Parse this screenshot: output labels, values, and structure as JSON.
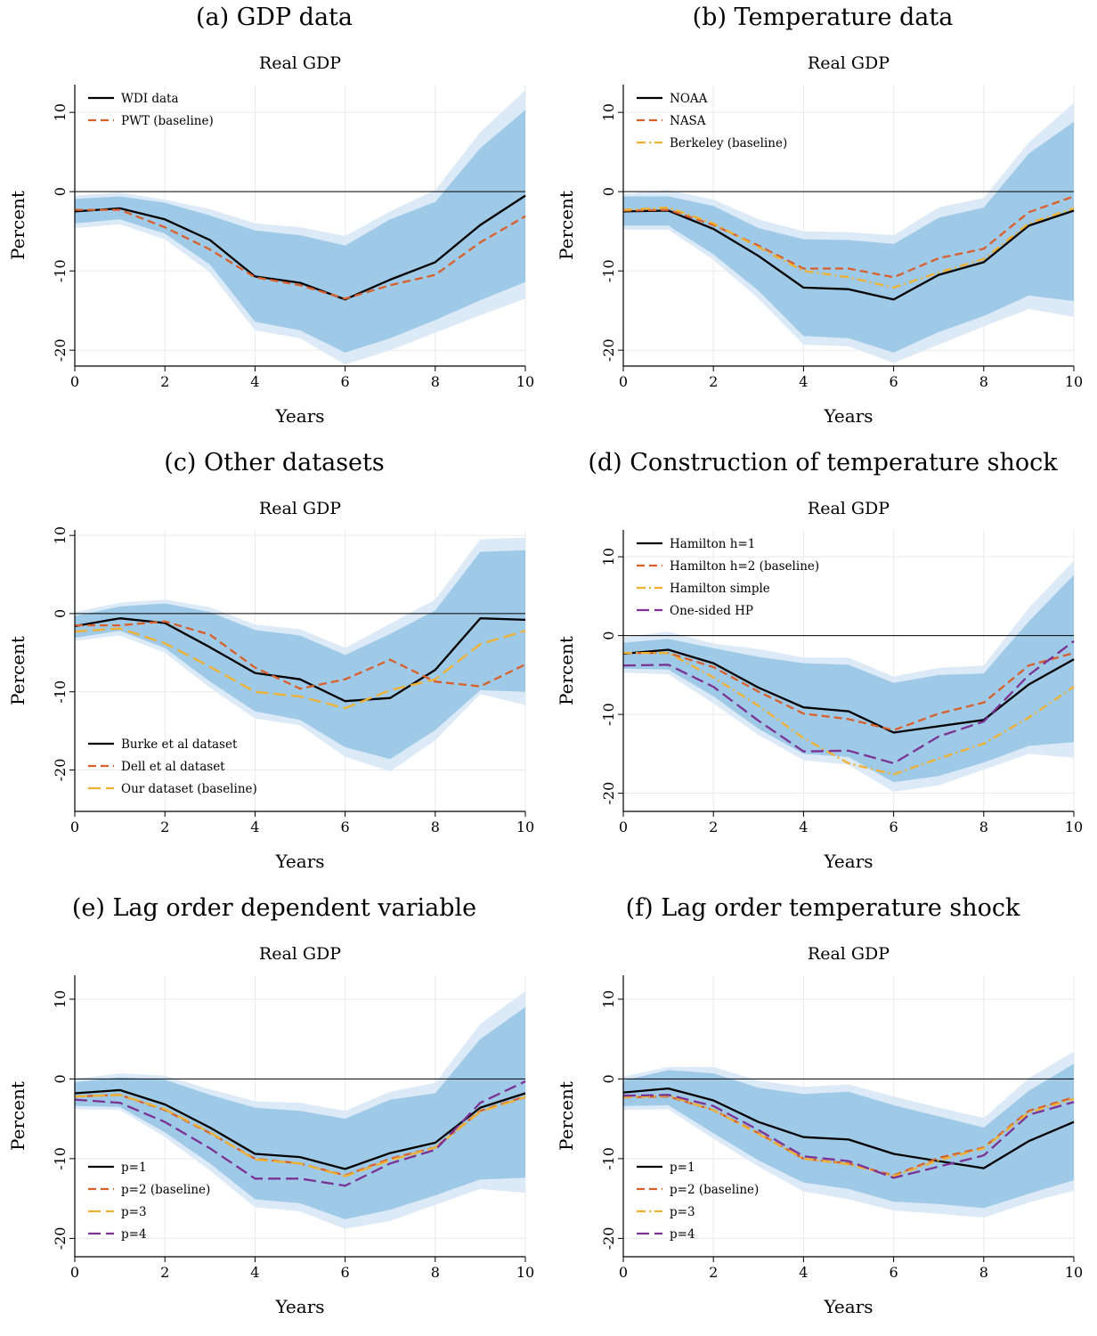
{
  "panels": [
    {
      "heading": "(a) GDP data"
    },
    {
      "heading": "(b) Temperature data"
    },
    {
      "heading": "(c) Other datasets"
    },
    {
      "heading": "(d) Construction of temperature shock"
    },
    {
      "heading": "(e) Lag order dependent variable"
    },
    {
      "heading": "(f) Lag order temperature shock"
    }
  ],
  "colors": {
    "band_outer": "#dce9f6",
    "band_inner": "#9ecae8",
    "zero_line": "#000000",
    "grid": "#eaeaea",
    "black": "#000000",
    "orange": "#d95f2b",
    "yellow": "#f0b030",
    "purple": "#7b3294"
  },
  "chart_data": [
    {
      "type": "line",
      "title": "Real GDP",
      "xlabel": "Years",
      "ylabel": "Percent",
      "x": [
        0,
        1,
        2,
        3,
        4,
        5,
        6,
        7,
        8,
        9,
        10
      ],
      "xticks": [
        0,
        2,
        4,
        6,
        8,
        10
      ],
      "yticks": [
        10,
        0,
        -10,
        -20
      ],
      "ylim": [
        -22,
        13.5
      ],
      "xlim": [
        0,
        10
      ],
      "grid": true,
      "legend_position": "top-left",
      "band_outer_upper": [
        -0.5,
        -0.1,
        -1.0,
        -2.2,
        -4.0,
        -4.5,
        -5.6,
        -2.5,
        0.2,
        7.5,
        12.8
      ],
      "band_outer_lower": [
        -4.6,
        -4.1,
        -6.0,
        -10.2,
        -17.5,
        -18.5,
        -21.8,
        -20.0,
        -17.8,
        -15.6,
        -13.5
      ],
      "band_inner_upper": [
        -0.9,
        -0.6,
        -1.4,
        -3.0,
        -4.9,
        -5.5,
        -6.8,
        -3.5,
        -1.3,
        5.5,
        10.3
      ],
      "band_inner_lower": [
        -4.0,
        -3.5,
        -5.3,
        -9.2,
        -16.4,
        -17.5,
        -20.3,
        -18.5,
        -16.2,
        -13.7,
        -11.4
      ],
      "series": [
        {
          "name": "WDI data",
          "color": "black",
          "dash": "solid",
          "values": [
            -2.5,
            -2.1,
            -3.5,
            -6.1,
            -10.7,
            -11.5,
            -13.6,
            -11.1,
            -8.9,
            -4.2,
            -0.5
          ]
        },
        {
          "name": "PWT (baseline)",
          "color": "orange",
          "dash": "dashed",
          "values": [
            -2.3,
            -2.3,
            -4.5,
            -7.3,
            -10.8,
            -11.8,
            -13.5,
            -11.8,
            -10.5,
            -6.4,
            -3.1
          ]
        }
      ]
    },
    {
      "type": "line",
      "title": "Real GDP",
      "xlabel": "Years",
      "ylabel": "Percent",
      "x": [
        0,
        1,
        2,
        3,
        4,
        5,
        6,
        7,
        8,
        9,
        10
      ],
      "xticks": [
        0,
        2,
        4,
        6,
        8,
        10
      ],
      "yticks": [
        10,
        0,
        -10,
        -20
      ],
      "ylim": [
        -22,
        13.5
      ],
      "xlim": [
        0,
        10
      ],
      "grid": true,
      "legend_position": "top-left",
      "band_outer_upper": [
        -0.3,
        0.2,
        -1.0,
        -3.5,
        -5.0,
        -5.1,
        -5.5,
        -2.0,
        -0.8,
        6.2,
        11.2
      ],
      "band_outer_lower": [
        -4.8,
        -4.8,
        -8.6,
        -13.5,
        -19.3,
        -19.5,
        -21.6,
        -19.3,
        -17.0,
        -14.8,
        -15.8
      ],
      "band_inner_upper": [
        -0.6,
        -0.6,
        -1.8,
        -4.6,
        -6.0,
        -6.1,
        -6.6,
        -3.3,
        -2.0,
        4.8,
        8.8
      ],
      "band_inner_lower": [
        -4.3,
        -4.3,
        -7.9,
        -12.5,
        -18.2,
        -18.5,
        -20.3,
        -17.7,
        -15.7,
        -13.1,
        -13.8
      ],
      "series": [
        {
          "name": "NOAA",
          "color": "black",
          "dash": "solid",
          "values": [
            -2.5,
            -2.4,
            -4.7,
            -8.1,
            -12.1,
            -12.3,
            -13.6,
            -10.5,
            -8.9,
            -4.3,
            -2.4
          ]
        },
        {
          "name": "NASA",
          "color": "orange",
          "dash": "dashed",
          "values": [
            -2.4,
            -2.3,
            -4.2,
            -6.8,
            -9.7,
            -9.7,
            -10.8,
            -8.4,
            -7.2,
            -2.6,
            -0.6
          ]
        },
        {
          "name": "Berkeley (baseline)",
          "color": "yellow",
          "dash": "dashdot",
          "values": [
            -2.3,
            -2.0,
            -4.0,
            -7.0,
            -10.0,
            -10.8,
            -12.1,
            -10.2,
            -8.5,
            -4.0,
            -2.1
          ]
        }
      ]
    },
    {
      "type": "line",
      "title": "Real GDP",
      "xlabel": "Years",
      "ylabel": "Percent",
      "x": [
        0,
        1,
        2,
        3,
        4,
        5,
        6,
        7,
        8,
        9,
        10
      ],
      "xticks": [
        0,
        2,
        4,
        6,
        8,
        10
      ],
      "yticks": [
        10,
        0,
        -10,
        -20
      ],
      "ylim": [
        -25.3,
        10.7
      ],
      "xlim": [
        0,
        10
      ],
      "grid": true,
      "legend_position": "bottom-left",
      "band_outer_upper": [
        0.2,
        1.4,
        1.8,
        0.8,
        -1.4,
        -2.0,
        -4.4,
        -1.3,
        1.8,
        9.5,
        9.7
      ],
      "band_outer_lower": [
        -3.5,
        -2.8,
        -5.0,
        -9.5,
        -13.4,
        -14.3,
        -18.3,
        -20.2,
        -16.2,
        -10.3,
        -11.7
      ],
      "band_inner_upper": [
        -0.3,
        0.9,
        1.3,
        0.2,
        -2.1,
        -2.8,
        -5.3,
        -2.6,
        0.4,
        7.9,
        8.1
      ],
      "band_inner_lower": [
        -3.1,
        -2.2,
        -4.4,
        -8.7,
        -12.5,
        -13.6,
        -17.1,
        -18.6,
        -14.9,
        -9.8,
        -10.0
      ],
      "series": [
        {
          "name": "Burke et al dataset",
          "color": "black",
          "dash": "solid",
          "values": [
            -1.6,
            -0.6,
            -1.2,
            -4.3,
            -7.6,
            -8.4,
            -11.2,
            -10.8,
            -7.2,
            -0.6,
            -0.8
          ]
        },
        {
          "name": "Dell et al dataset",
          "color": "orange",
          "dash": "dashed",
          "values": [
            -1.5,
            -1.5,
            -1.0,
            -2.7,
            -6.9,
            -9.6,
            -8.4,
            -5.9,
            -8.7,
            -9.3,
            -6.5
          ]
        },
        {
          "name": "Our dataset (baseline)",
          "color": "yellow",
          "dash": "longdash",
          "values": [
            -2.3,
            -1.9,
            -3.8,
            -6.8,
            -10.0,
            -10.6,
            -12.1,
            -9.8,
            -8.4,
            -3.9,
            -2.2
          ]
        }
      ]
    },
    {
      "type": "line",
      "title": "Real GDP",
      "xlabel": "Years",
      "ylabel": "Percent",
      "x": [
        0,
        1,
        2,
        3,
        4,
        5,
        6,
        7,
        8,
        9,
        10
      ],
      "xticks": [
        0,
        2,
        4,
        6,
        8,
        10
      ],
      "yticks": [
        10,
        0,
        -10,
        -20
      ],
      "ylim": [
        -22.3,
        13.4
      ],
      "xlim": [
        0,
        10
      ],
      "grid": true,
      "legend_position": "top-left",
      "band_outer_upper": [
        -0.2,
        0.5,
        -1.0,
        -1.7,
        -2.8,
        -2.8,
        -5.2,
        -4.1,
        -3.8,
        3.5,
        9.5
      ],
      "band_outer_lower": [
        -4.7,
        -4.9,
        -8.6,
        -12.6,
        -15.8,
        -16.4,
        -19.8,
        -19.0,
        -17.0,
        -15.0,
        -15.5
      ],
      "band_inner_upper": [
        -0.9,
        -0.4,
        -1.6,
        -2.7,
        -3.5,
        -3.7,
        -6.0,
        -5.0,
        -4.8,
        1.8,
        7.7
      ],
      "band_inner_lower": [
        -4.2,
        -4.3,
        -7.7,
        -11.8,
        -15.0,
        -15.4,
        -18.6,
        -17.8,
        -16.1,
        -14.0,
        -13.5
      ],
      "series": [
        {
          "name": "Hamilton h=1",
          "color": "black",
          "dash": "solid",
          "values": [
            -2.3,
            -1.8,
            -3.5,
            -6.6,
            -9.1,
            -9.6,
            -12.3,
            -11.5,
            -10.7,
            -6.2,
            -3.0
          ]
        },
        {
          "name": "Hamilton h=2 (baseline)",
          "color": "orange",
          "dash": "dashed",
          "values": [
            -2.2,
            -2.2,
            -4.0,
            -7.1,
            -9.9,
            -10.6,
            -12.0,
            -9.9,
            -8.5,
            -3.8,
            -2.2
          ]
        },
        {
          "name": "Hamilton simple",
          "color": "yellow",
          "dash": "dashdot",
          "values": [
            -2.2,
            -2.2,
            -5.3,
            -8.9,
            -13.0,
            -16.2,
            -17.6,
            -15.6,
            -13.7,
            -10.4,
            -6.5
          ]
        },
        {
          "name": "One-sided HP",
          "color": "purple",
          "dash": "longdash",
          "values": [
            -3.8,
            -3.7,
            -6.5,
            -10.8,
            -14.7,
            -14.6,
            -16.2,
            -12.8,
            -10.9,
            -5.0,
            -0.7
          ]
        }
      ]
    },
    {
      "type": "line",
      "title": "Real GDP",
      "xlabel": "Years",
      "ylabel": "Percent",
      "x": [
        0,
        1,
        2,
        3,
        4,
        5,
        6,
        7,
        8,
        9,
        10
      ],
      "xticks": [
        0,
        2,
        4,
        6,
        8,
        10
      ],
      "yticks": [
        10,
        0,
        -10,
        -20
      ],
      "ylim": [
        -22.3,
        13.0
      ],
      "xlim": [
        0,
        10
      ],
      "grid": true,
      "legend_position": "bottom-left",
      "band_outer_upper": [
        0.0,
        0.7,
        0.4,
        -1.3,
        -2.8,
        -3.0,
        -4.0,
        -1.6,
        -0.5,
        6.9,
        11.0
      ],
      "band_outer_lower": [
        -3.8,
        -3.9,
        -7.3,
        -11.5,
        -16.1,
        -16.6,
        -18.8,
        -17.8,
        -15.8,
        -13.8,
        -14.3
      ],
      "band_inner_upper": [
        -0.4,
        0.2,
        -0.1,
        -2.0,
        -3.6,
        -4.0,
        -5.0,
        -2.6,
        -1.8,
        5.0,
        9.0
      ],
      "band_inner_lower": [
        -3.4,
        -3.5,
        -6.7,
        -10.6,
        -15.1,
        -15.6,
        -17.6,
        -16.4,
        -14.6,
        -12.6,
        -12.4
      ],
      "series": [
        {
          "name": "p=1",
          "color": "black",
          "dash": "solid",
          "values": [
            -1.8,
            -1.4,
            -3.2,
            -6.1,
            -9.4,
            -9.8,
            -11.3,
            -9.3,
            -8.0,
            -3.6,
            -1.8
          ]
        },
        {
          "name": "p=2 (baseline)",
          "color": "orange",
          "dash": "dashed",
          "values": [
            -2.2,
            -2.0,
            -3.9,
            -6.8,
            -10.0,
            -10.6,
            -12.1,
            -10.0,
            -8.6,
            -4.0,
            -2.2
          ]
        },
        {
          "name": "p=3",
          "color": "yellow",
          "dash": "longdash",
          "values": [
            -2.2,
            -2.0,
            -3.8,
            -6.7,
            -10.1,
            -10.6,
            -12.2,
            -10.2,
            -8.6,
            -4.1,
            -2.3
          ]
        },
        {
          "name": "p=4",
          "color": "purple",
          "dash": "longdash",
          "values": [
            -2.6,
            -3.0,
            -5.4,
            -8.7,
            -12.5,
            -12.5,
            -13.4,
            -10.6,
            -8.9,
            -3.0,
            -0.3
          ]
        }
      ]
    },
    {
      "type": "line",
      "title": "Real GDP",
      "xlabel": "Years",
      "ylabel": "Percent",
      "x": [
        0,
        1,
        2,
        3,
        4,
        5,
        6,
        7,
        8,
        9,
        10
      ],
      "xticks": [
        0,
        2,
        4,
        6,
        8,
        10
      ],
      "yticks": [
        10,
        0,
        -10,
        -20
      ],
      "ylim": [
        -22.3,
        13.0
      ],
      "xlim": [
        0,
        10
      ],
      "grid": true,
      "legend_position": "bottom-left",
      "band_outer_upper": [
        0.3,
        1.5,
        1.5,
        -0.2,
        -1.0,
        -0.7,
        -2.2,
        -3.6,
        -4.9,
        0.1,
        3.4
      ],
      "band_outer_lower": [
        -3.9,
        -3.8,
        -7.5,
        -11.0,
        -14.1,
        -15.1,
        -16.5,
        -16.9,
        -17.4,
        -15.5,
        -14.0
      ],
      "band_inner_upper": [
        -0.2,
        1.1,
        0.7,
        -1.1,
        -1.9,
        -1.6,
        -3.3,
        -4.7,
        -6.1,
        -1.5,
        1.9
      ],
      "band_inner_lower": [
        -3.4,
        -3.3,
        -6.8,
        -10.2,
        -13.0,
        -13.8,
        -15.4,
        -15.7,
        -16.2,
        -14.4,
        -12.7
      ],
      "series": [
        {
          "name": "p=1",
          "color": "black",
          "dash": "solid",
          "values": [
            -1.7,
            -1.2,
            -2.7,
            -5.4,
            -7.3,
            -7.6,
            -9.4,
            -10.3,
            -11.2,
            -7.8,
            -5.4
          ]
        },
        {
          "name": "p=2 (baseline)",
          "color": "orange",
          "dash": "dashed",
          "values": [
            -2.3,
            -2.2,
            -3.9,
            -6.8,
            -10.0,
            -10.6,
            -12.1,
            -9.9,
            -8.6,
            -4.0,
            -2.3
          ]
        },
        {
          "name": "p=3",
          "color": "yellow",
          "dash": "dashdot",
          "values": [
            -2.3,
            -2.1,
            -3.9,
            -6.9,
            -10.0,
            -10.7,
            -12.2,
            -10.2,
            -8.7,
            -4.2,
            -2.5
          ]
        },
        {
          "name": "p=4",
          "color": "purple",
          "dash": "longdash",
          "values": [
            -2.1,
            -2.0,
            -3.4,
            -6.4,
            -9.7,
            -10.3,
            -12.4,
            -11.0,
            -9.6,
            -4.5,
            -2.9
          ]
        }
      ]
    }
  ]
}
